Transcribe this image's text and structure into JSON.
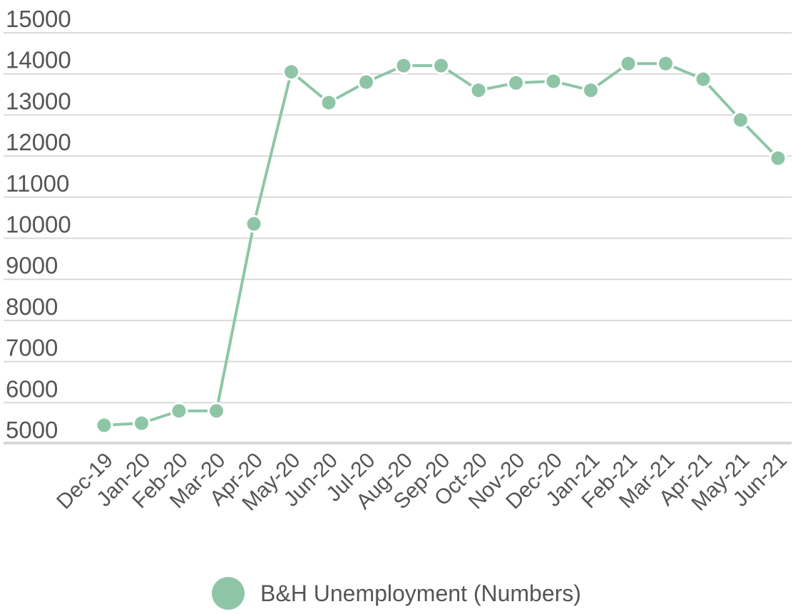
{
  "chart_data": {
    "type": "line",
    "title": "",
    "xlabel": "",
    "ylabel": "",
    "ylim": [
      4700,
      15000
    ],
    "yticks": [
      5000,
      6000,
      7000,
      8000,
      9000,
      10000,
      11000,
      12000,
      13000,
      14000,
      15000
    ],
    "yticks_text": [
      "5000",
      "6000",
      "7000",
      "8000",
      "9000",
      "10000",
      "11000",
      "12000",
      "13000",
      "14000",
      "15000"
    ],
    "grid": true,
    "legend_position": "bottom-center",
    "categories": [
      "Dec-19",
      "Jan-20",
      "Feb-20",
      "Mar-20",
      "Apr-20",
      "May-20",
      "Jun-20",
      "Jul-20",
      "Aug-20",
      "Sep-20",
      "Oct-20",
      "Nov-20",
      "Dec-20",
      "Jan-21",
      "Feb-21",
      "Mar-21",
      "Apr-21",
      "May-21",
      "Jun-21"
    ],
    "series": [
      {
        "name": "B&H Unemployment (Numbers)",
        "color": "#8ec5a7",
        "values": [
          5450,
          5500,
          5800,
          5800,
          10350,
          14050,
          13300,
          13800,
          14200,
          14200,
          13600,
          13780,
          13820,
          13600,
          14250,
          14250,
          13870,
          12880,
          11950
        ]
      }
    ]
  }
}
